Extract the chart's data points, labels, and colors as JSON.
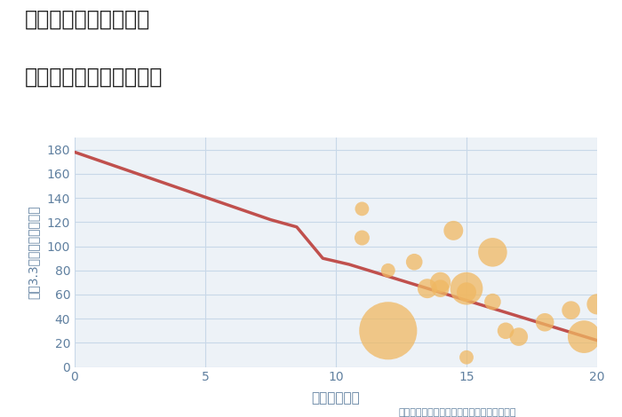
{
  "title_line1": "大阪府枚方市小倉町の",
  "title_line2": "駅距離別中古戸建て価格",
  "xlabel": "駅距離（分）",
  "ylabel": "坪（3.3㎡）単価（万円）",
  "xlim": [
    0,
    20
  ],
  "ylim": [
    0,
    190
  ],
  "xticks": [
    0,
    5,
    10,
    15,
    20
  ],
  "yticks": [
    0,
    20,
    40,
    60,
    80,
    100,
    120,
    140,
    160,
    180
  ],
  "line_x": [
    0,
    7.5,
    8.5,
    9.5,
    10.5,
    20
  ],
  "line_y": [
    178,
    122,
    116,
    90,
    85,
    22
  ],
  "line_color": "#c0504d",
  "line_width": 2.5,
  "scatter_x": [
    11,
    11,
    12,
    12,
    13,
    13.5,
    14,
    14,
    14.5,
    15,
    15,
    15,
    16,
    16,
    16.5,
    17,
    18,
    19,
    19.5,
    20
  ],
  "scatter_y": [
    107,
    131,
    80,
    30,
    87,
    65,
    70,
    65,
    113,
    65,
    62,
    8,
    95,
    54,
    30,
    25,
    37,
    47,
    25,
    52
  ],
  "scatter_size": [
    150,
    130,
    130,
    2200,
    180,
    250,
    280,
    200,
    250,
    700,
    250,
    130,
    550,
    180,
    180,
    220,
    220,
    220,
    700,
    280
  ],
  "scatter_color": "#f0b862",
  "scatter_alpha": 0.75,
  "annotation": "円の大きさは、取引のあった物件面積を示す",
  "bg_color": "#ffffff",
  "plot_bg_color": "#edf2f7",
  "grid_color": "#c8d8e8",
  "title_color": "#222222",
  "label_color": "#6080a0",
  "tick_color": "#6080a0"
}
